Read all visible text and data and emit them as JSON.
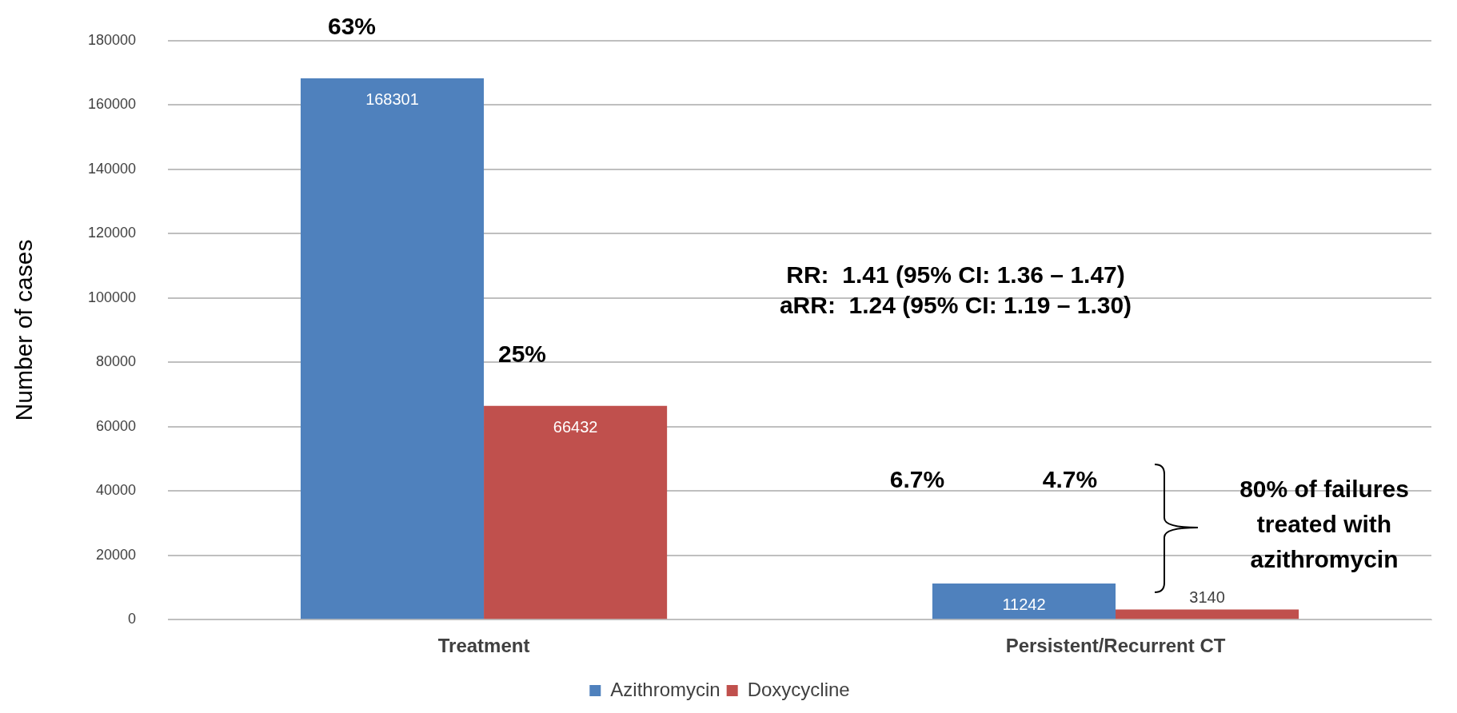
{
  "chart_data": {
    "type": "bar",
    "ylabel": "Number of cases",
    "categories": [
      "Treatment",
      "Persistent/Recurrent CT"
    ],
    "series": [
      {
        "name": "Azithromycin",
        "color": "#4f81bd",
        "values": [
          168301,
          11242
        ]
      },
      {
        "name": "Doxycycline",
        "color": "#c0504d",
        "values": [
          66432,
          3140
        ]
      }
    ],
    "ylim": [
      0,
      180000
    ],
    "yticks": [
      0,
      20000,
      40000,
      60000,
      80000,
      100000,
      120000,
      140000,
      160000,
      180000
    ],
    "grid": "y",
    "legend": "bottom",
    "data_labels": true,
    "annotations": [
      "63%",
      "25%",
      "6.7%",
      "4.7%",
      "RR:  1.41 (95% CI: 1.36 – 1.47)",
      "aRR:  1.24 (95% CI: 1.19 – 1.30)",
      "80% of failures treated with azithromycin"
    ]
  }
}
